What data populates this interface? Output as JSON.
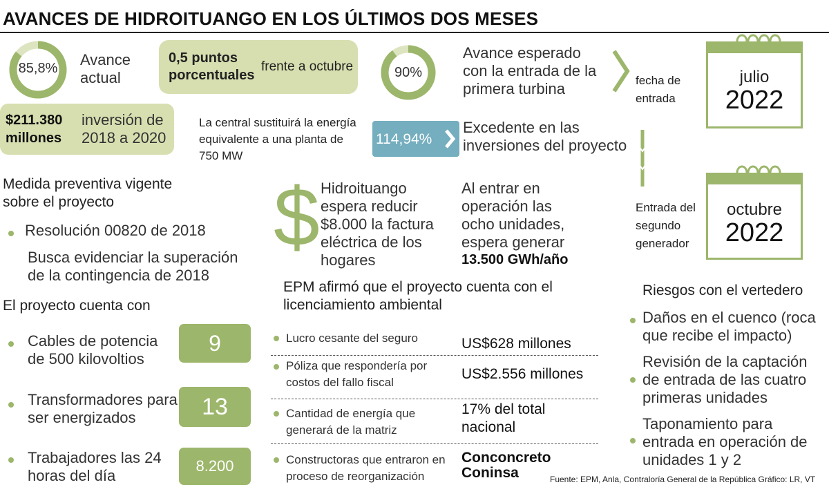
{
  "title": "AVANCES DE HIDROITUANGO EN LOS ÚLTIMOS DOS MESES",
  "progress_current": {
    "value": "85,8%",
    "fraction": 0.858,
    "label": "Avance actual"
  },
  "points_pill": {
    "bold": "0,5 puntos porcentuales",
    "text": "frente a octubre"
  },
  "investment": {
    "amount": "$211.380 millones",
    "text": "inversión de 2018 a 2020"
  },
  "plant_note": "La central sustituirá la energía equivalente a una planta de 750 MW",
  "progress_expected": {
    "value": "90%",
    "fraction": 0.9,
    "label": "Avance esperado con la entrada de la primera turbina"
  },
  "excess": {
    "value": "114,94%",
    "label": "Excedente en las inversiones del proyecto"
  },
  "timeline": {
    "first_label": "fecha de entrada",
    "second_label": "Entrada del segundo generador",
    "cal1": {
      "month": "julio",
      "year": "2022"
    },
    "cal2": {
      "month": "octubre",
      "year": "2022"
    }
  },
  "preventive": {
    "heading": "Medida preventiva vigente sobre el proyecto",
    "item": "Resolución 00820 de 2018",
    "desc": "Busca evidenciar la superación de la contingencia de 2018"
  },
  "counts": {
    "heading": "El proyecto cuenta con",
    "items": [
      {
        "label": "Cables de potencia de 500 kilovoltios",
        "value": "9"
      },
      {
        "label": "Transformadores para ser energizados",
        "value": "13"
      },
      {
        "label": "Trabajadores las 24 horas del día",
        "value": "8.200"
      }
    ]
  },
  "reduce": {
    "text": "Hidroituango espera reducir $8.000 la factura eléctrica de los hogares"
  },
  "generate": {
    "text": "Al entrar en operación las ocho unidades, espera generar",
    "bold": "13.500 GWh/año"
  },
  "license": {
    "heading": "EPM afirmó que el proyecto cuenta con el licenciamiento ambiental",
    "rows": [
      {
        "label": "Lucro cesante del seguro",
        "value": "US$628 millones"
      },
      {
        "label": "Póliza que respondería por costos del fallo fiscal",
        "value": "US$2.556 millones"
      },
      {
        "label": "Cantidad de energía que generará de la matriz",
        "value": "17% del total nacional"
      },
      {
        "label": "Constructoras que entraron en proceso de reorganización",
        "value": "Conconcreto Coninsa"
      }
    ]
  },
  "risks": {
    "heading": "Riesgos con el vertedero",
    "items": [
      "Daños en el cuenco (roca que recibe el impacto)",
      "Revisión de la captación de entrada de las cuatro primeras unidades",
      "Taponamiento para entrada en operación de unidades 1 y 2"
    ]
  },
  "source": "Fuente: EPM, Anla, Contraloría General de la República Gráfico: LR, VT",
  "colors": {
    "green": "#9cb66b",
    "light_green": "#d7dfb0",
    "ring_bg": "#dde4c0",
    "blue": "#74aebf"
  }
}
